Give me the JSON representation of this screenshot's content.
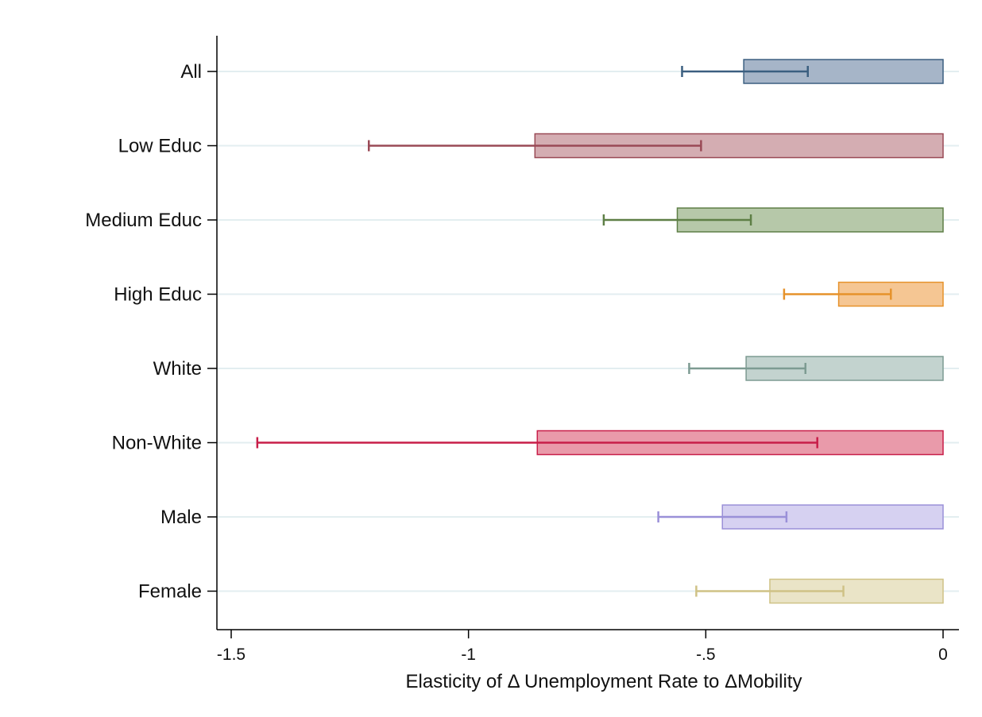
{
  "chart_data": {
    "type": "bar",
    "orientation": "horizontal",
    "title": "",
    "xlabel": "Elasticity of Δ Unemployment Rate to ΔMobility",
    "ylabel": "",
    "xlim": [
      -1.5,
      0
    ],
    "xticks": [
      {
        "value": -1.5,
        "label": "-1.5"
      },
      {
        "value": -1,
        "label": "-1"
      },
      {
        "value": -0.5,
        "label": "-.5"
      },
      {
        "value": 0,
        "label": "0"
      }
    ],
    "grid": true,
    "legend": "none",
    "categories": [
      "All",
      "Low Educ",
      "Medium Educ",
      "High Educ",
      "White",
      "Non-White",
      "Male",
      "Female"
    ],
    "values": [
      -0.42,
      -0.86,
      -0.56,
      -0.22,
      -0.415,
      -0.855,
      -0.465,
      -0.365
    ],
    "ci_low": [
      -0.55,
      -1.21,
      -0.715,
      -0.335,
      -0.535,
      -1.445,
      -0.6,
      -0.52
    ],
    "ci_high": [
      -0.285,
      -0.51,
      -0.405,
      -0.11,
      -0.29,
      -0.265,
      -0.33,
      -0.21
    ],
    "colors": {
      "fill": [
        "#a6b5c8",
        "#d4adb2",
        "#b6c8a9",
        "#f5c693",
        "#c3d3cf",
        "#e99aaa",
        "#d6d1f1",
        "#eae4c7"
      ],
      "stroke": [
        "#3b5f80",
        "#9a4a56",
        "#5e7f46",
        "#e6922b",
        "#7d9b92",
        "#c81e49",
        "#9a90d8",
        "#cfc286"
      ],
      "gridline": "#e3eef0",
      "axis": "#000000"
    }
  }
}
